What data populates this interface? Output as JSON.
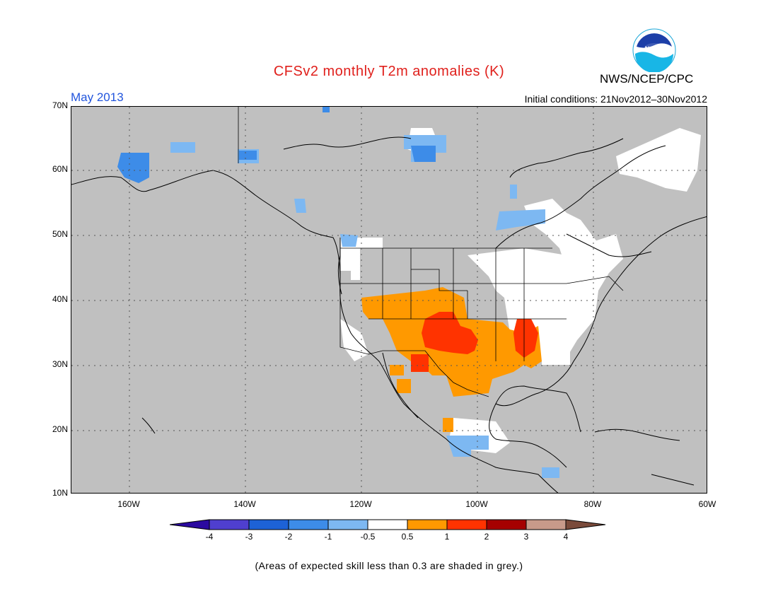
{
  "title": "CFSv2 monthly T2m anomalies (K)",
  "month": "May 2013",
  "initial_conditions": "Initial conditions: 21Nov2012–30Nov2012",
  "agency": "NWS/NCEP/CPC",
  "logo_text": "NOAA",
  "note": "(Areas of expected skill less than 0.3 are shaded in grey.)",
  "map": {
    "lon_range": [
      -170,
      -60
    ],
    "lat_range": [
      10,
      70
    ],
    "lat_labels": [
      "10N",
      "20N",
      "30N",
      "40N",
      "50N",
      "60N",
      "70N"
    ],
    "lon_labels": [
      "160W",
      "140W",
      "120W",
      "100W",
      "80W",
      "60W"
    ],
    "grid": "dotted",
    "colors": {
      "low_skill": "#c0c0c0",
      "neutral": "#ffffff",
      "coast": "#000000"
    }
  },
  "colorbar": {
    "labels": [
      "-4",
      "-3",
      "-2",
      "-1",
      "-0.5",
      "0.5",
      "1",
      "2",
      "3",
      "4"
    ],
    "colors": [
      "#2b0aa0",
      "#4f3fcf",
      "#1d62d6",
      "#3d8ce8",
      "#7db8f2",
      "#ffffff",
      "#ff9900",
      "#ff3300",
      "#a50000",
      "#c89a8a",
      "#7a4a3a"
    ]
  }
}
